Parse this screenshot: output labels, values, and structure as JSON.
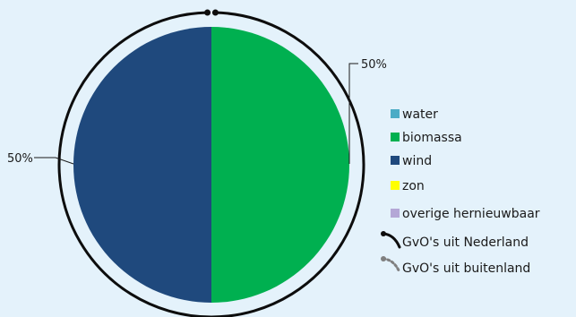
{
  "chart_data": {
    "type": "pie",
    "slices": [
      {
        "label": "biomassa",
        "value": 50,
        "color": "#00b050"
      },
      {
        "label": "wind",
        "value": 50,
        "color": "#1f497d"
      }
    ],
    "data_labels": [
      "50%",
      "50%"
    ],
    "outer_ring": {
      "label": "GvO's uit Nederland",
      "share": 100,
      "color": "#0d0d0d"
    },
    "legend": {
      "placement": "right",
      "items": [
        {
          "label": "water",
          "type": "square",
          "color": "#4bacc6"
        },
        {
          "label": "biomassa",
          "type": "square",
          "color": "#00b050"
        },
        {
          "label": "wind",
          "type": "square",
          "color": "#1f497d"
        },
        {
          "label": "zon",
          "type": "square",
          "color": "#ffff00"
        },
        {
          "label": "overige hernieuwbaar",
          "type": "square",
          "color": "#b4a7d6"
        },
        {
          "label": "GvO's uit Nederland",
          "type": "solid-arc",
          "color": "#0d0d0d"
        },
        {
          "label": "GvO's uit buitenland",
          "type": "dotted-arc",
          "color": "#7f7f7f"
        }
      ]
    },
    "background": "#e4f2fb"
  }
}
